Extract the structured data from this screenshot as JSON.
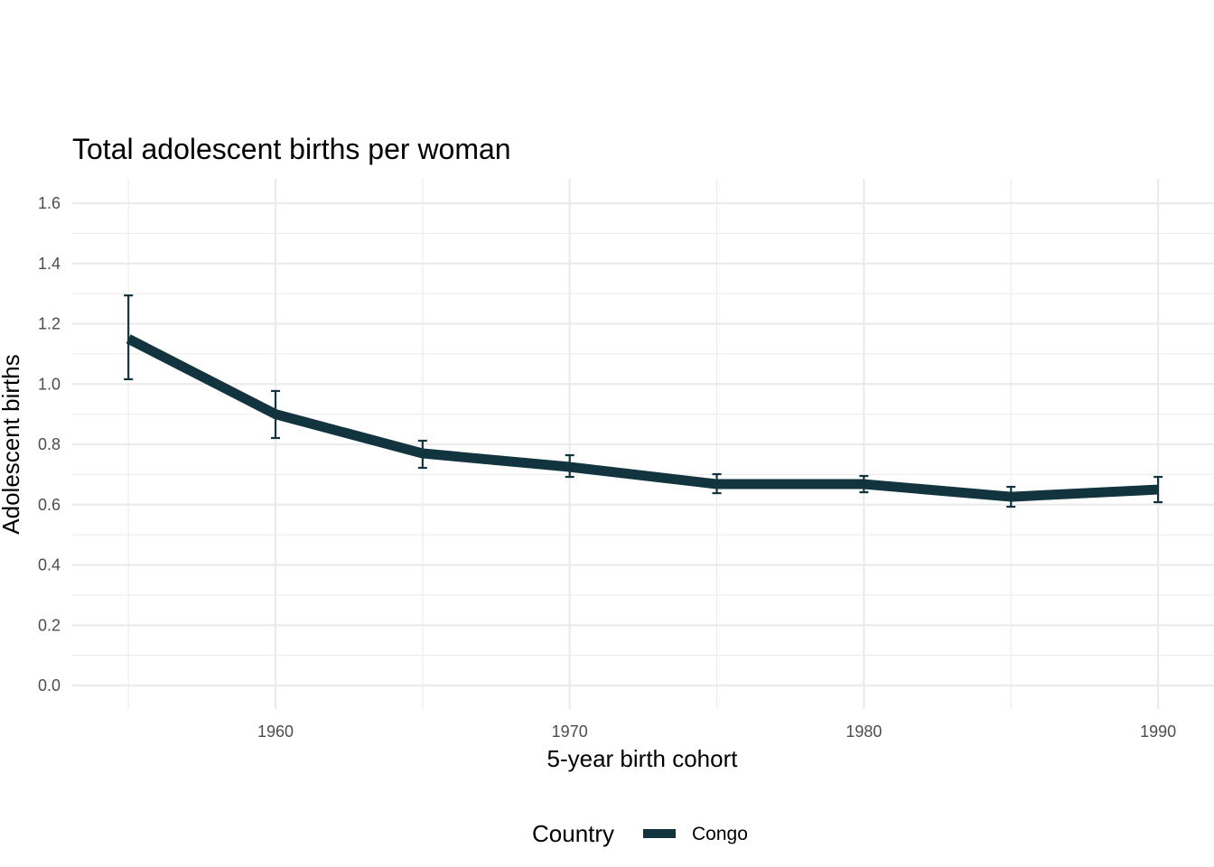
{
  "chart_data": {
    "type": "line",
    "title": "Total adolescent births per woman",
    "xlabel": "5-year birth cohort",
    "ylabel": "Adolescent births",
    "xlim": [
      1953,
      1992
    ],
    "ylim": [
      -0.08,
      1.68
    ],
    "x_ticks": [
      1960,
      1970,
      1980,
      1990
    ],
    "y_ticks": [
      0.0,
      0.2,
      0.4,
      0.6,
      0.8,
      1.0,
      1.2,
      1.4,
      1.6
    ],
    "grid": true,
    "legend": {
      "title": "Country",
      "placement": "bottom"
    },
    "series": [
      {
        "name": "Congo",
        "color": "#12343f",
        "x": [
          1955,
          1960,
          1965,
          1970,
          1975,
          1980,
          1985,
          1990
        ],
        "y": [
          1.15,
          0.9,
          0.77,
          0.725,
          0.668,
          0.668,
          0.626,
          0.65
        ],
        "lower": [
          1.016,
          0.821,
          0.722,
          0.692,
          0.638,
          0.641,
          0.593,
          0.608
        ],
        "upper": [
          1.294,
          0.977,
          0.812,
          0.764,
          0.701,
          0.695,
          0.659,
          0.692
        ]
      }
    ]
  }
}
